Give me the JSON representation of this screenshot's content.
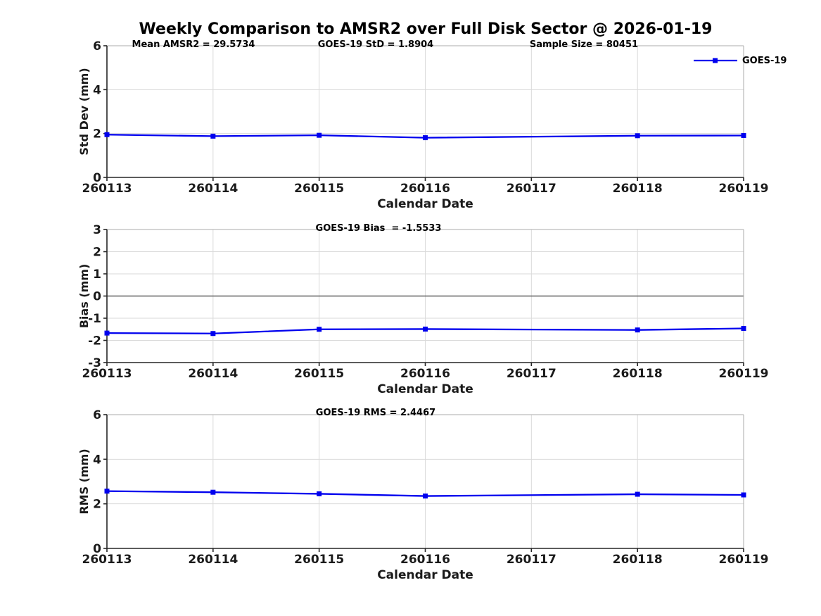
{
  "title": "Weekly Comparison to AMSR2 over Full Disk Sector @ 2026-01-19",
  "legend": {
    "label": "GOES-19",
    "color": "#0000ee"
  },
  "colors": {
    "line": "#0000ee",
    "grid": "#dadada",
    "axis": "#262626",
    "box": "#ababab",
    "zero_line": "#606060",
    "text": "#1a1a1a"
  },
  "chart_data": [
    {
      "type": "line",
      "panel": "stddev",
      "ylabel": "Std Dev (mm)",
      "xlabel": "Calendar Date",
      "ylim": [
        0,
        6
      ],
      "yticks": [
        0,
        2,
        4,
        6
      ],
      "xlim": [
        260113,
        260119
      ],
      "xticks": [
        260113,
        260114,
        260115,
        260116,
        260117,
        260118,
        260119
      ],
      "annotations": [
        "Mean AMSR2 = 29.5734",
        "GOES-19 StD = 1.8904",
        "Sample Size = 80451"
      ],
      "series": [
        {
          "name": "GOES-19",
          "x": [
            260113,
            260114,
            260115,
            260116,
            260118,
            260119
          ],
          "y": [
            1.95,
            1.88,
            1.92,
            1.81,
            1.9,
            1.91
          ]
        }
      ],
      "grid": true,
      "legend_position": "top-right"
    },
    {
      "type": "line",
      "panel": "bias",
      "ylabel": "Bias (mm)",
      "xlabel": "Calendar Date",
      "ylim": [
        -3,
        3
      ],
      "yticks": [
        -3,
        -2,
        -1,
        0,
        1,
        2,
        3
      ],
      "xlim": [
        260113,
        260119
      ],
      "xticks": [
        260113,
        260114,
        260115,
        260116,
        260117,
        260118,
        260119
      ],
      "annotations": [
        "GOES-19 Bias  = -1.5533"
      ],
      "zero_line": true,
      "series": [
        {
          "name": "GOES-19",
          "x": [
            260113,
            260114,
            260115,
            260116,
            260118,
            260119
          ],
          "y": [
            -1.67,
            -1.69,
            -1.5,
            -1.49,
            -1.53,
            -1.46
          ]
        }
      ],
      "grid": true
    },
    {
      "type": "line",
      "panel": "rms",
      "ylabel": "RMS (mm)",
      "xlabel": "Calendar Date",
      "ylim": [
        0,
        6
      ],
      "yticks": [
        0,
        2,
        4,
        6
      ],
      "xlim": [
        260113,
        260119
      ],
      "xticks": [
        260113,
        260114,
        260115,
        260116,
        260117,
        260118,
        260119
      ],
      "annotations": [
        "GOES-19 RMS = 2.4467"
      ],
      "series": [
        {
          "name": "GOES-19",
          "x": [
            260113,
            260114,
            260115,
            260116,
            260118,
            260119
          ],
          "y": [
            2.57,
            2.52,
            2.45,
            2.35,
            2.43,
            2.4
          ]
        }
      ],
      "grid": true
    }
  ]
}
